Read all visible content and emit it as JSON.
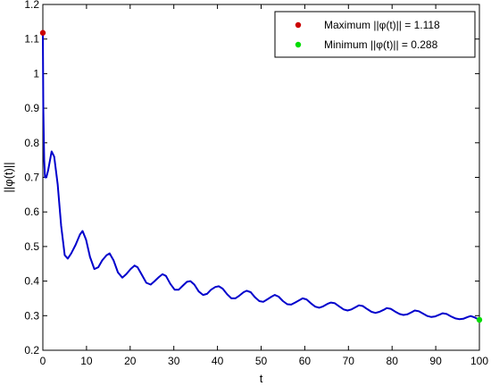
{
  "chart_data": {
    "type": "line",
    "xlabel": "t",
    "ylabel": "||φ(t)||",
    "xlim": [
      0,
      100
    ],
    "ylim": [
      0.2,
      1.2
    ],
    "x_ticks": [
      "0",
      "10",
      "20",
      "30",
      "40",
      "50",
      "60",
      "70",
      "80",
      "90",
      "100"
    ],
    "y_ticks": [
      "0.2",
      "0.3",
      "0.4",
      "0.5",
      "0.6",
      "0.7",
      "0.8",
      "0.9",
      "1",
      "1.1",
      "1.2"
    ],
    "grid": false,
    "legend_position": "top-right",
    "series": [
      {
        "color": "#0000cc",
        "x": [
          0,
          0.1,
          0.3,
          0.5,
          0.8,
          1.2,
          2.0,
          2.6,
          3.4,
          4.2,
          5.0,
          5.7,
          6.5,
          7.5,
          8.5,
          9.1,
          9.9,
          10.8,
          11.8,
          12.7,
          13.6,
          14.6,
          15.3,
          16.2,
          17.2,
          18.2,
          19.1,
          20.1,
          21.0,
          21.7,
          22.6,
          23.7,
          24.7,
          25.6,
          26.6,
          27.4,
          28.2,
          29.2,
          30.2,
          31.1,
          32.0,
          33.0,
          33.8,
          34.7,
          35.7,
          36.7,
          37.6,
          38.5,
          39.5,
          40.3,
          41.2,
          42.2,
          43.2,
          44.1,
          45.0,
          46.0,
          46.7,
          47.6,
          48.6,
          49.6,
          50.5,
          51.4,
          52.4,
          53.1,
          54.0,
          55.0,
          56.0,
          56.9,
          57.8,
          58.8,
          59.5,
          60.4,
          61.4,
          62.4,
          63.3,
          64.2,
          65.2,
          66.0,
          66.9,
          67.9,
          68.9,
          69.8,
          70.7,
          71.7,
          72.4,
          73.3,
          74.3,
          75.3,
          76.2,
          77.1,
          78.1,
          78.8,
          79.7,
          80.7,
          81.7,
          82.6,
          83.5,
          84.5,
          85.2,
          86.1,
          87.1,
          88.1,
          89.0,
          89.9,
          90.9,
          91.6,
          92.5,
          93.5,
          94.5,
          95.4,
          96.3,
          97.3,
          98.0,
          98.9,
          100
        ],
        "y": [
          1.118,
          0.9,
          0.75,
          0.7,
          0.7,
          0.72,
          0.775,
          0.76,
          0.68,
          0.56,
          0.475,
          0.465,
          0.48,
          0.505,
          0.535,
          0.545,
          0.52,
          0.47,
          0.435,
          0.44,
          0.46,
          0.475,
          0.48,
          0.46,
          0.425,
          0.41,
          0.42,
          0.435,
          0.445,
          0.44,
          0.42,
          0.395,
          0.39,
          0.4,
          0.412,
          0.42,
          0.415,
          0.392,
          0.375,
          0.375,
          0.386,
          0.398,
          0.4,
          0.39,
          0.37,
          0.36,
          0.363,
          0.375,
          0.383,
          0.385,
          0.378,
          0.362,
          0.35,
          0.35,
          0.358,
          0.368,
          0.372,
          0.368,
          0.353,
          0.342,
          0.34,
          0.347,
          0.355,
          0.36,
          0.355,
          0.342,
          0.333,
          0.332,
          0.338,
          0.345,
          0.35,
          0.347,
          0.336,
          0.326,
          0.323,
          0.327,
          0.334,
          0.338,
          0.336,
          0.327,
          0.318,
          0.315,
          0.318,
          0.325,
          0.33,
          0.328,
          0.319,
          0.311,
          0.308,
          0.311,
          0.317,
          0.322,
          0.32,
          0.312,
          0.305,
          0.302,
          0.304,
          0.31,
          0.315,
          0.313,
          0.306,
          0.299,
          0.296,
          0.298,
          0.303,
          0.307,
          0.305,
          0.298,
          0.292,
          0.29,
          0.291,
          0.296,
          0.299,
          0.295,
          0.288
        ]
      }
    ],
    "markers": [
      {
        "x": 0,
        "y": 1.118,
        "color": "#cc0000"
      },
      {
        "x": 100,
        "y": 0.288,
        "color": "#00dd00"
      }
    ],
    "legend": [
      {
        "label": "Maximum ||φ(t)|| = 1.118",
        "color": "#cc0000"
      },
      {
        "label": "Minimum ||φ(t)|| = 0.288",
        "color": "#00dd00"
      }
    ]
  }
}
